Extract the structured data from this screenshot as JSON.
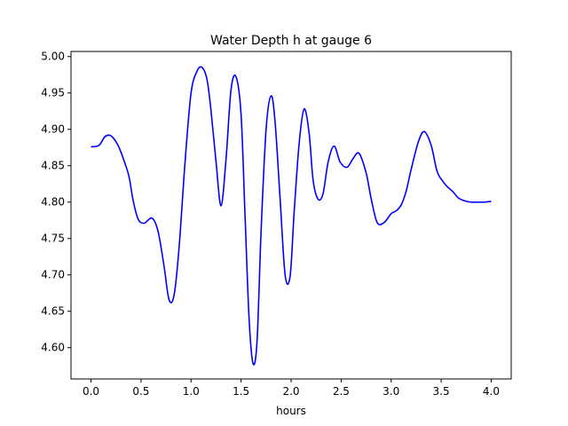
{
  "chart_data": {
    "type": "line",
    "title": "Water Depth h at gauge 6",
    "xlabel": "hours",
    "ylabel": "",
    "xlim": [
      -0.2,
      4.2
    ],
    "ylim": [
      4.557,
      5.007
    ],
    "xticks": [
      0.0,
      0.5,
      1.0,
      1.5,
      2.0,
      2.5,
      3.0,
      3.5,
      4.0
    ],
    "xtick_labels": [
      "0.0",
      "0.5",
      "1.0",
      "1.5",
      "2.0",
      "2.5",
      "3.0",
      "3.5",
      "4.0"
    ],
    "yticks": [
      4.6,
      4.65,
      4.7,
      4.75,
      4.8,
      4.85,
      4.9,
      4.95,
      5.0
    ],
    "ytick_labels": [
      "4.60",
      "4.65",
      "4.70",
      "4.75",
      "4.80",
      "4.85",
      "4.90",
      "4.95",
      "5.00"
    ],
    "grid": false,
    "series": [
      {
        "color": "#0000ff",
        "x": [
          0.0,
          0.08,
          0.14,
          0.2,
          0.27,
          0.33,
          0.38,
          0.42,
          0.47,
          0.53,
          0.61,
          0.67,
          0.73,
          0.78,
          0.83,
          0.88,
          0.94,
          1.0,
          1.06,
          1.11,
          1.16,
          1.2,
          1.25,
          1.3,
          1.35,
          1.4,
          1.45,
          1.5,
          1.54,
          1.58,
          1.62,
          1.66,
          1.7,
          1.75,
          1.8,
          1.84,
          1.89,
          1.94,
          1.99,
          2.03,
          2.08,
          2.13,
          2.18,
          2.22,
          2.27,
          2.32,
          2.37,
          2.43,
          2.49,
          2.56,
          2.62,
          2.68,
          2.75,
          2.8,
          2.86,
          2.93,
          3.0,
          3.05,
          3.1,
          3.15,
          3.2,
          3.27,
          3.33,
          3.4,
          3.46,
          3.52,
          3.57,
          3.62,
          3.67,
          3.73,
          3.8,
          3.87,
          3.93,
          4.0
        ],
        "y": [
          4.876,
          4.878,
          4.89,
          4.891,
          4.878,
          4.857,
          4.835,
          4.803,
          4.777,
          4.771,
          4.778,
          4.76,
          4.712,
          4.666,
          4.672,
          4.737,
          4.855,
          4.95,
          4.98,
          4.985,
          4.968,
          4.925,
          4.855,
          4.795,
          4.86,
          4.955,
          4.972,
          4.92,
          4.78,
          4.64,
          4.578,
          4.61,
          4.76,
          4.9,
          4.946,
          4.91,
          4.805,
          4.7,
          4.698,
          4.785,
          4.88,
          4.928,
          4.895,
          4.83,
          4.804,
          4.812,
          4.855,
          4.877,
          4.855,
          4.848,
          4.86,
          4.867,
          4.84,
          4.805,
          4.772,
          4.772,
          4.784,
          4.788,
          4.796,
          4.815,
          4.845,
          4.882,
          4.897,
          4.878,
          4.842,
          4.828,
          4.82,
          4.814,
          4.806,
          4.802,
          4.8,
          4.8,
          4.8,
          4.801
        ]
      }
    ]
  }
}
